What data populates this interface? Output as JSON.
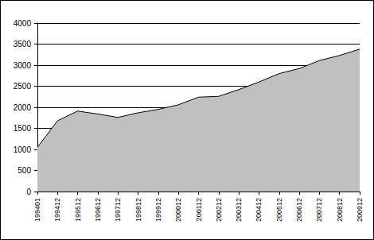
{
  "chart_data": {
    "type": "area",
    "categories": [
      "199401",
      "199412",
      "199512",
      "199612",
      "199712",
      "199812",
      "199912",
      "200012",
      "200112",
      "200212",
      "200312",
      "200412",
      "200512",
      "200612",
      "200712",
      "200812",
      "200912"
    ],
    "values": [
      1050,
      1680,
      1910,
      1840,
      1760,
      1870,
      1950,
      2060,
      2240,
      2260,
      2420,
      2600,
      2800,
      2920,
      3110,
      3230,
      3380
    ],
    "color": "#c0c0c0",
    "ylim": [
      0,
      4000
    ],
    "yticks": [
      0,
      500,
      1000,
      1500,
      2000,
      2500,
      3000,
      3500,
      4000
    ],
    "grid": true
  }
}
